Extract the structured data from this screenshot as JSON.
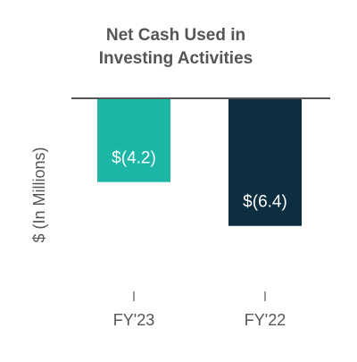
{
  "chart_data": {
    "type": "bar",
    "title_lines": [
      "Net Cash Used in",
      "Investing Activities"
    ],
    "ylabel": "$ (In Millions)",
    "categories": [
      "FY'23",
      "FY'22"
    ],
    "values": [
      -4.2,
      -6.4
    ],
    "data_labels": [
      "$(4.2)",
      "$(6.4)"
    ],
    "colors": [
      "#1cb6a7",
      "#0d2d40"
    ],
    "axis_color": "#555555",
    "ylim": [
      -10,
      0
    ],
    "grid": false,
    "legend": "none"
  }
}
